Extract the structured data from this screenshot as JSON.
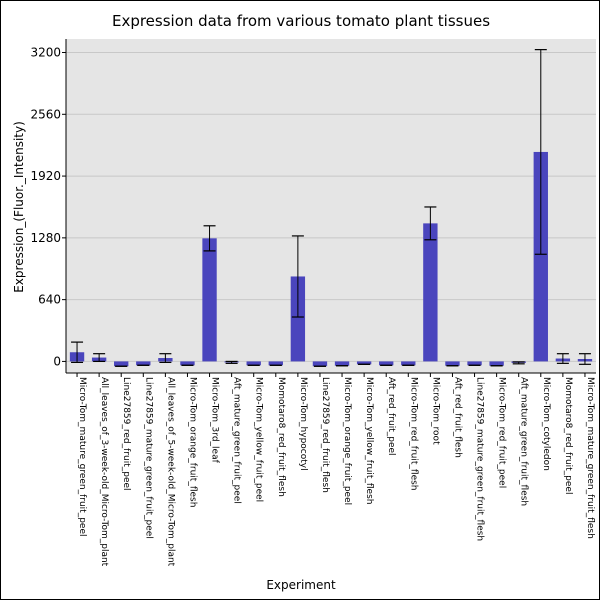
{
  "chart_data": {
    "type": "bar",
    "title": "Expression data from various tomato plant tissues",
    "xlabel": "Experiment",
    "ylabel": "Expression_(Fluor._Intensity)",
    "ylim": [
      -120,
      3340
    ],
    "yticks": [
      0,
      640,
      1280,
      1920,
      2560,
      3200
    ],
    "grid": true,
    "colors": {
      "bar": "#4a45bd",
      "plot_background": "#e5e5e5",
      "grid": "#c8c8c8",
      "error_bar": "#000000"
    },
    "categories": [
      "Micro-Tom_mature_green_fruit_peel",
      "All_leaves_of_3-week-old_Micro-Tom_plant",
      "Line27859_red_fruit_peel",
      "Line27859_mature_green_fruit_peel",
      "All_leaves_of_5-week-old_Micro-Tom_plant",
      "Micro-Tom_orange_fruit_flesh",
      "Micro-Tom_3rd_leaf",
      "Aft_mature_green_fruit_peel",
      "Micro-Tom_yellow_fruit_peel",
      "Momotaro8_red_fruit_flesh",
      "Micro-Tom_hypocotyl",
      "Line27859_red_fruit_flesh",
      "Micro-Tom_orange_fruit_peel",
      "Micro-Tom_yellow_fruit_flesh",
      "Aft_red_fruit_peel",
      "Micro-Tom_red_fruit_flesh",
      "Micro-Tom_root",
      "Aft_red_fruit_flesh",
      "Line27859_mature_green_fruit_flesh",
      "Micro-Tom_red_fruit_peel",
      "Aft_mature_green_fruit_flesh",
      "Micro-Tom_cotyledon",
      "Momotaro8_red_fruit_peel",
      "Micro-Tom_mature_green_fruit_flesh"
    ],
    "values": [
      95,
      40,
      -50,
      -40,
      35,
      -40,
      1275,
      -10,
      -40,
      -40,
      880,
      -50,
      -45,
      -30,
      -40,
      -40,
      1430,
      -45,
      -40,
      -45,
      -15,
      2170,
      30,
      25
    ],
    "errors": [
      105,
      40,
      0,
      0,
      45,
      0,
      130,
      10,
      0,
      0,
      420,
      0,
      0,
      0,
      0,
      0,
      170,
      0,
      0,
      0,
      10,
      1060,
      50,
      55
    ]
  }
}
